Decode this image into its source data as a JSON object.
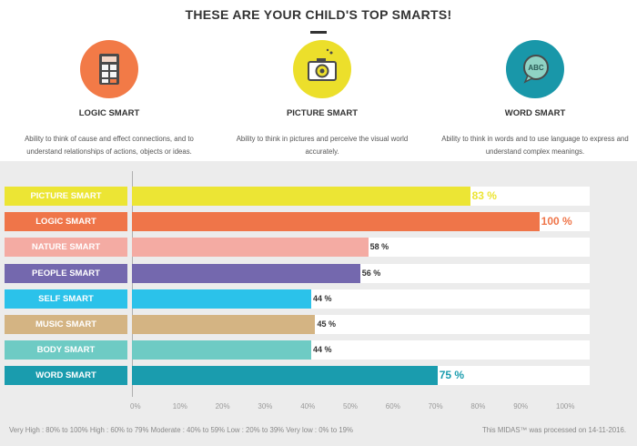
{
  "header": {
    "title": "THESE ARE YOUR CHILD'S TOP SMARTS!"
  },
  "top_smarts": [
    {
      "name": "LOGIC SMART",
      "icon": "calculator-icon",
      "color": "#f27a47",
      "description": "Ability to think of cause and effect connections, and to understand relationships of actions, objects or ideas."
    },
    {
      "name": "PICTURE SMART",
      "icon": "camera-icon",
      "color": "#ecdf2b",
      "description": "Ability to think in pictures and perceive the visual world accurately."
    },
    {
      "name": "WORD SMART",
      "icon": "abc-speech-bubble-icon",
      "color": "#1997a9",
      "description": "Ability to think in words and to use language to express and understand complex meanings."
    }
  ],
  "chart_data": {
    "type": "bar",
    "orientation": "horizontal",
    "categories": [
      "PICTURE SMART",
      "LOGIC SMART",
      "NATURE SMART",
      "PEOPLE SMART",
      "SELF SMART",
      "MUSIC SMART",
      "BODY SMART",
      "WORD SMART"
    ],
    "values": [
      83,
      100,
      58,
      56,
      44,
      45,
      44,
      75
    ],
    "value_labels": [
      "83 %",
      "100 %",
      "58 %",
      "56 %",
      "44 %",
      "45 %",
      "44 %",
      "75 %"
    ],
    "colors": [
      "#ece534",
      "#ef7549",
      "#f4aba3",
      "#7468ae",
      "#2bc2ea",
      "#d4b483",
      "#6ecbc4",
      "#1a9cae"
    ],
    "top_smarts_highlighted": [
      "PICTURE SMART",
      "LOGIC SMART",
      "WORD SMART"
    ],
    "xlim": [
      0,
      100
    ],
    "x_tick_labels": [
      "0%",
      "10%",
      "20%",
      "30%",
      "40%",
      "50%",
      "60%",
      "70%",
      "80%",
      "90%",
      "100%"
    ]
  },
  "footer": {
    "legend": "Very High : 80% to 100%    High : 60% to 79%    Moderate : 40% to 59%    Low : 20% to 39%    Very low : 0% to 19%",
    "processed": "This MIDAS™ was processed on 14-11-2016."
  }
}
